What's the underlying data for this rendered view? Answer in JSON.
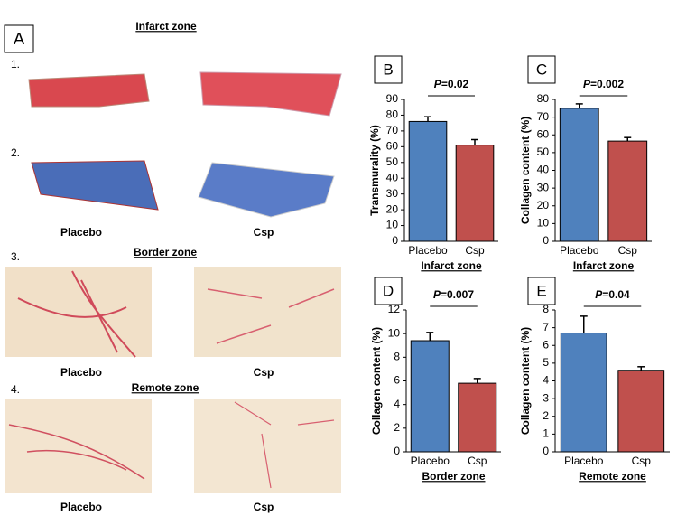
{
  "panel_a": {
    "label": "A",
    "rows": [
      {
        "number": "1.",
        "heading": "Infarct zone"
      },
      {
        "number": "2."
      },
      {
        "number": "3.",
        "heading": "Border zone"
      },
      {
        "number": "4.",
        "heading": "Remote zone"
      }
    ],
    "captions": [
      [
        "Placebo",
        "Csp"
      ],
      [
        "Placebo",
        "Csp"
      ],
      [
        "Placebo",
        "Csp"
      ]
    ]
  },
  "chart_data": [
    {
      "type": "bar",
      "panel": "B",
      "y_label": "Transmurality (%)",
      "x_label": "Infarct zone",
      "p_symbol": "P",
      "p_text": "=0.02",
      "categories": [
        "Placebo",
        "Csp"
      ],
      "values": [
        76,
        61
      ],
      "errors": [
        3,
        3.5
      ],
      "colors": [
        "#4f81bd",
        "#c0504d"
      ],
      "ylim": [
        0,
        90
      ],
      "yticks": [
        0,
        10,
        20,
        30,
        40,
        50,
        60,
        70,
        80,
        90
      ]
    },
    {
      "type": "bar",
      "panel": "C",
      "y_label": "Collagen content (%)",
      "x_label": "Infarct zone",
      "p_symbol": "P",
      "p_text": "=0.002",
      "categories": [
        "Placebo",
        "Csp"
      ],
      "values": [
        75,
        56.5
      ],
      "errors": [
        2.5,
        2
      ],
      "colors": [
        "#4f81bd",
        "#c0504d"
      ],
      "ylim": [
        0,
        80
      ],
      "yticks": [
        0,
        10,
        20,
        30,
        40,
        50,
        60,
        70,
        80
      ]
    },
    {
      "type": "bar",
      "panel": "D",
      "y_label": "Collagen content (%)",
      "x_label": "Border zone",
      "p_symbol": "P",
      "p_text": "=0.007",
      "categories": [
        "Placebo",
        "Csp"
      ],
      "values": [
        9.4,
        5.8
      ],
      "errors": [
        0.7,
        0.4
      ],
      "colors": [
        "#4f81bd",
        "#c0504d"
      ],
      "ylim": [
        0,
        12
      ],
      "yticks": [
        0,
        2,
        4,
        6,
        8,
        10,
        12
      ]
    },
    {
      "type": "bar",
      "panel": "E",
      "y_label": "Collagen content (%)",
      "x_label": "Remote zone",
      "p_symbol": "P",
      "p_text": "=0.04",
      "categories": [
        "Placebo",
        "Csp"
      ],
      "values": [
        6.7,
        4.6
      ],
      "errors": [
        0.95,
        0.2
      ],
      "colors": [
        "#4f81bd",
        "#c0504d"
      ],
      "ylim": [
        0,
        8
      ],
      "yticks": [
        0,
        1,
        2,
        3,
        4,
        5,
        6,
        7,
        8
      ]
    }
  ]
}
